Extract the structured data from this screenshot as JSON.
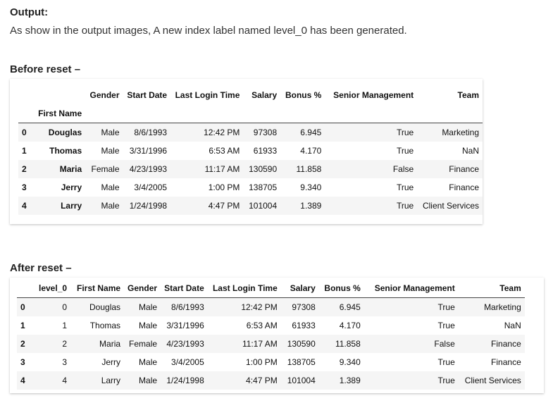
{
  "output_heading": "Output:",
  "intro_text": "As show in the output images, A new index label named level_0 has been generated.",
  "before": {
    "heading": "Before reset –",
    "columns": [
      "Gender",
      "Start Date",
      "Last Login Time",
      "Salary",
      "Bonus %",
      "Senior Management",
      "Team"
    ],
    "index_name": "First Name",
    "rows": [
      {
        "idx": "0",
        "name": "Douglas",
        "cells": [
          "Male",
          "8/6/1993",
          "12:42 PM",
          "97308",
          "6.945",
          "True",
          "Marketing"
        ]
      },
      {
        "idx": "1",
        "name": "Thomas",
        "cells": [
          "Male",
          "3/31/1996",
          "6:53 AM",
          "61933",
          "4.170",
          "True",
          "NaN"
        ]
      },
      {
        "idx": "2",
        "name": "Maria",
        "cells": [
          "Female",
          "4/23/1993",
          "11:17 AM",
          "130590",
          "11.858",
          "False",
          "Finance"
        ]
      },
      {
        "idx": "3",
        "name": "Jerry",
        "cells": [
          "Male",
          "3/4/2005",
          "1:00 PM",
          "138705",
          "9.340",
          "True",
          "Finance"
        ]
      },
      {
        "idx": "4",
        "name": "Larry",
        "cells": [
          "Male",
          "1/24/1998",
          "4:47 PM",
          "101004",
          "1.389",
          "True",
          "Client Services"
        ]
      }
    ]
  },
  "after": {
    "heading": "After reset –",
    "columns": [
      "level_0",
      "First Name",
      "Gender",
      "Start Date",
      "Last Login Time",
      "Salary",
      "Bonus %",
      "Senior Management",
      "Team"
    ],
    "rows": [
      {
        "idx": "0",
        "cells": [
          "0",
          "Douglas",
          "Male",
          "8/6/1993",
          "12:42 PM",
          "97308",
          "6.945",
          "True",
          "Marketing"
        ]
      },
      {
        "idx": "1",
        "cells": [
          "1",
          "Thomas",
          "Male",
          "3/31/1996",
          "6:53 AM",
          "61933",
          "4.170",
          "True",
          "NaN"
        ]
      },
      {
        "idx": "2",
        "cells": [
          "2",
          "Maria",
          "Female",
          "4/23/1993",
          "11:17 AM",
          "130590",
          "11.858",
          "False",
          "Finance"
        ]
      },
      {
        "idx": "3",
        "cells": [
          "3",
          "Jerry",
          "Male",
          "3/4/2005",
          "1:00 PM",
          "138705",
          "9.340",
          "True",
          "Finance"
        ]
      },
      {
        "idx": "4",
        "cells": [
          "4",
          "Larry",
          "Male",
          "1/24/1998",
          "4:47 PM",
          "101004",
          "1.389",
          "True",
          "Client Services"
        ]
      }
    ]
  }
}
